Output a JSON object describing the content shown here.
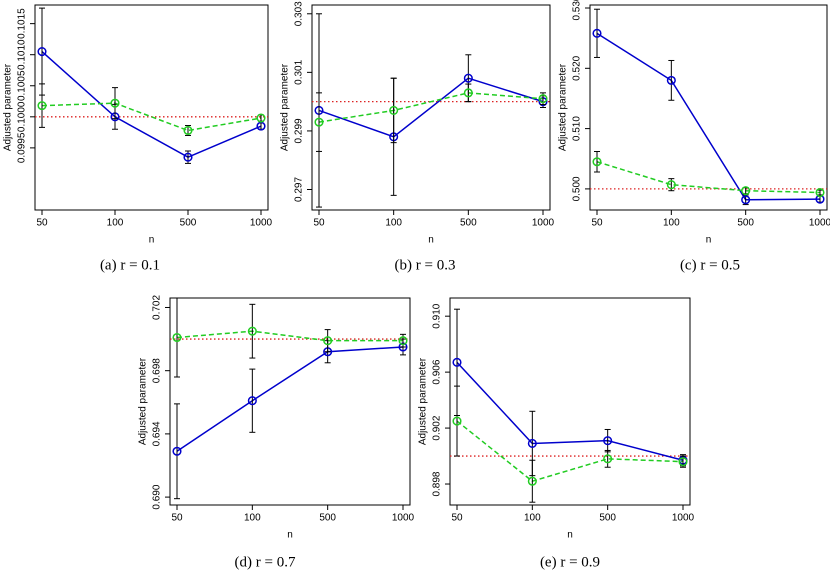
{
  "chart_data": [
    {
      "type": "line",
      "caption": "(a) r = 0.1",
      "xlabel": "n",
      "ylabel": "Adjusted parameter",
      "categories": [
        "50",
        "100",
        "500",
        "1000"
      ],
      "series": [
        {
          "color": "#0000cc",
          "values": [
            0.10105,
            0.1,
            0.09935,
            0.09985
          ],
          "errors": [
            0.0007,
            0.0002,
            0.0001,
            5e-05
          ]
        },
        {
          "color": "#22cc22",
          "dashed": true,
          "values": [
            0.10018,
            0.10022,
            0.09978,
            0.09998
          ],
          "errors": [
            0.00035,
            0.00025,
            8e-05,
            5e-05
          ]
        }
      ],
      "reference": 0.1,
      "reference_color": "#dd2222",
      "ylim": [
        0.0985,
        0.1018
      ],
      "yticks": [
        0.0995,
        {
          "value": 0.1,
          "label": "0.1000"
        },
        0.1005,
        {
          "value": 0.101,
          "label": "0.1010"
        },
        0.1015
      ]
    },
    {
      "type": "line",
      "caption": "(b) r = 0.3",
      "xlabel": "n",
      "ylabel": "Adjusted parameter",
      "categories": [
        "50",
        "100",
        "500",
        "1000"
      ],
      "series": [
        {
          "color": "#0000cc",
          "values": [
            0.2997,
            0.2988,
            0.3008,
            0.3
          ],
          "errors": [
            0.0033,
            0.002,
            0.0008,
            0.0002
          ]
        },
        {
          "color": "#22cc22",
          "dashed": true,
          "values": [
            0.2993,
            0.2997,
            0.3003,
            0.3001
          ],
          "errors": [
            0.001,
            0.0011,
            0.0003,
            0.0002
          ]
        }
      ],
      "reference": 0.3,
      "reference_color": "#dd2222",
      "ylim": [
        0.2963,
        0.3033
      ],
      "yticks": [
        0.297,
        0.299,
        0.301,
        0.303
      ]
    },
    {
      "type": "line",
      "caption": "(c) r = 0.5",
      "xlabel": "n",
      "ylabel": "Adjusted parameter",
      "categories": [
        "50",
        "100",
        "500",
        "1000"
      ],
      "series": [
        {
          "color": "#0000cc",
          "values": [
            0.5258,
            0.518,
            0.4982,
            0.4983
          ],
          "errors": [
            0.004,
            0.0033,
            0.0008,
            0.0005
          ]
        },
        {
          "color": "#22cc22",
          "dashed": true,
          "values": [
            0.5045,
            0.5007,
            0.4997,
            0.4994
          ],
          "errors": [
            0.0017,
            0.001,
            0.0005,
            0.0004
          ]
        }
      ],
      "reference": 0.5,
      "reference_color": "#dd2222",
      "ylim": [
        0.4965,
        0.5305
      ],
      "yticks": [
        {
          "value": 0.5,
          "label": "0.500"
        },
        {
          "value": 0.51,
          "label": "0.510"
        },
        {
          "value": 0.52,
          "label": "0.520"
        },
        {
          "value": 0.53,
          "label": "0.530"
        }
      ]
    },
    {
      "type": "line",
      "caption": "(d) r = 0.7",
      "xlabel": "n",
      "ylabel": "Adjusted parameter",
      "categories": [
        "50",
        "100",
        "500",
        "1000"
      ],
      "series": [
        {
          "color": "#0000cc",
          "values": [
            0.6929,
            0.6961,
            0.6992,
            0.6995
          ],
          "errors": [
            0.003,
            0.002,
            0.0007,
            0.0005
          ]
        },
        {
          "color": "#22cc22",
          "dashed": true,
          "values": [
            0.7001,
            0.7005,
            0.6999,
            0.6999
          ],
          "errors": [
            0.0025,
            0.0017,
            0.0007,
            0.0004
          ]
        }
      ],
      "reference": 0.7,
      "reference_color": "#dd2222",
      "ylim": [
        0.6895,
        0.7026
      ],
      "yticks": [
        {
          "value": 0.69,
          "label": "0.690"
        },
        0.694,
        0.698,
        0.702
      ]
    },
    {
      "type": "line",
      "caption": "(e) r = 0.9",
      "xlabel": "n",
      "ylabel": "Adjusted parameter",
      "categories": [
        "50",
        "100",
        "500",
        "1000"
      ],
      "series": [
        {
          "color": "#0000cc",
          "values": [
            0.9067,
            0.9009,
            0.9011,
            0.8997
          ],
          "errors": [
            0.0038,
            0.0023,
            0.0008,
            0.0004
          ]
        },
        {
          "color": "#22cc22",
          "dashed": true,
          "values": [
            0.9025,
            0.8982,
            0.8998,
            0.8996
          ],
          "errors": [
            0.0025,
            0.0015,
            0.0006,
            0.0004
          ]
        }
      ],
      "reference": 0.9,
      "reference_color": "#dd2222",
      "ylim": [
        0.8965,
        0.9113
      ],
      "yticks": [
        0.898,
        0.902,
        0.906,
        {
          "value": 0.91,
          "label": "0.910"
        }
      ]
    }
  ]
}
